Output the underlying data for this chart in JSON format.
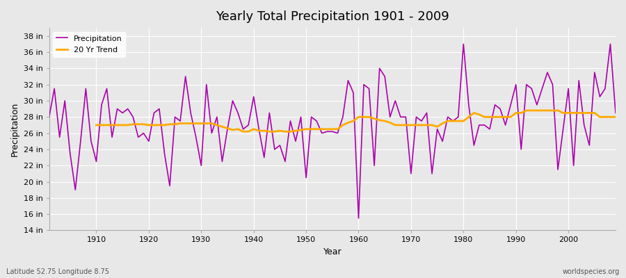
{
  "title": "Yearly Total Precipitation 1901 - 2009",
  "xlabel": "Year",
  "ylabel": "Precipitation",
  "subtitle_left": "Latitude 52.75 Longitude 8.75",
  "subtitle_right": "worldspecies.org",
  "legend_precip": "Precipitation",
  "legend_trend": "20 Yr Trend",
  "precip_color": "#aa00aa",
  "trend_color": "#ffaa00",
  "background_color": "#e8e8e8",
  "plot_bg_color": "#e8e8e8",
  "ylim": [
    14,
    39
  ],
  "yticks": [
    14,
    16,
    18,
    20,
    22,
    24,
    26,
    28,
    30,
    32,
    34,
    36,
    38
  ],
  "ytick_labels": [
    "14 in",
    "16 in",
    "18 in",
    "20 in",
    "22 in",
    "24 in",
    "26 in",
    "28 in",
    "30 in",
    "32 in",
    "34 in",
    "36 in",
    "38 in"
  ],
  "xticks": [
    1910,
    1920,
    1930,
    1940,
    1950,
    1960,
    1970,
    1980,
    1990,
    2000
  ],
  "years": [
    1901,
    1902,
    1903,
    1904,
    1905,
    1906,
    1907,
    1908,
    1909,
    1910,
    1911,
    1912,
    1913,
    1914,
    1915,
    1916,
    1917,
    1918,
    1919,
    1920,
    1921,
    1922,
    1923,
    1924,
    1925,
    1926,
    1927,
    1928,
    1929,
    1930,
    1931,
    1932,
    1933,
    1934,
    1935,
    1936,
    1937,
    1938,
    1939,
    1940,
    1941,
    1942,
    1943,
    1944,
    1945,
    1946,
    1947,
    1948,
    1949,
    1950,
    1951,
    1952,
    1953,
    1954,
    1955,
    1956,
    1957,
    1958,
    1959,
    1960,
    1961,
    1962,
    1963,
    1964,
    1965,
    1966,
    1967,
    1968,
    1969,
    1970,
    1971,
    1972,
    1973,
    1974,
    1975,
    1976,
    1977,
    1978,
    1979,
    1980,
    1981,
    1982,
    1983,
    1984,
    1985,
    1986,
    1987,
    1988,
    1989,
    1990,
    1991,
    1992,
    1993,
    1994,
    1995,
    1996,
    1997,
    1998,
    1999,
    2000,
    2001,
    2002,
    2003,
    2004,
    2005,
    2006,
    2007,
    2008,
    2009
  ],
  "precip": [
    28.0,
    31.5,
    25.5,
    30.0,
    23.5,
    19.0,
    25.0,
    31.5,
    25.0,
    22.5,
    29.5,
    31.5,
    25.5,
    29.0,
    28.5,
    29.0,
    28.0,
    25.5,
    26.0,
    25.0,
    28.5,
    29.0,
    23.5,
    19.5,
    28.0,
    27.5,
    33.0,
    28.5,
    25.5,
    22.0,
    32.0,
    26.0,
    28.0,
    22.5,
    26.5,
    30.0,
    28.5,
    26.5,
    27.0,
    30.5,
    26.5,
    23.0,
    28.5,
    24.0,
    24.5,
    22.5,
    27.5,
    25.0,
    28.0,
    20.5,
    28.0,
    27.5,
    26.0,
    26.2,
    26.2,
    26.0,
    28.0,
    32.5,
    31.0,
    15.5,
    32.0,
    31.5,
    22.0,
    34.0,
    33.0,
    28.0,
    30.0,
    28.0,
    28.0,
    21.0,
    28.0,
    27.5,
    28.5,
    21.0,
    26.5,
    25.0,
    28.0,
    27.5,
    28.0,
    37.0,
    29.5,
    24.5,
    27.0,
    27.0,
    26.5,
    29.5,
    29.0,
    27.0,
    29.5,
    32.0,
    24.0,
    32.0,
    31.5,
    29.5,
    31.5,
    33.5,
    32.0,
    21.5,
    26.5,
    31.5,
    22.0,
    32.5,
    27.0,
    24.5,
    33.5,
    30.5,
    31.5,
    37.0,
    28.5
  ],
  "trend_years": [
    1910,
    1911,
    1912,
    1913,
    1914,
    1915,
    1916,
    1917,
    1918,
    1919,
    1920,
    1921,
    1922,
    1923,
    1924,
    1925,
    1926,
    1927,
    1928,
    1929,
    1930,
    1931,
    1932,
    1933,
    1934,
    1935,
    1936,
    1937,
    1938,
    1939,
    1940,
    1941,
    1942,
    1943,
    1944,
    1945,
    1946,
    1947,
    1948,
    1949,
    1950,
    1951,
    1952,
    1953,
    1954,
    1955,
    1956,
    1957,
    1958,
    1959,
    1960,
    1961,
    1962,
    1963,
    1964,
    1965,
    1966,
    1967,
    1968,
    1969,
    1970,
    1971,
    1972,
    1973,
    1974,
    1975,
    1976,
    1977,
    1978,
    1979,
    1980,
    1981,
    1982,
    1983,
    1984,
    1985,
    1986,
    1987,
    1988,
    1989,
    1990,
    1991,
    1992,
    1993,
    1994,
    1995,
    1996,
    1997,
    1998,
    1999,
    2000,
    2001,
    2002,
    2003,
    2004,
    2005,
    2006,
    2007,
    2008,
    2009
  ],
  "trend": [
    27.0,
    27.0,
    27.0,
    27.0,
    27.0,
    27.0,
    27.0,
    27.1,
    27.1,
    27.1,
    27.0,
    27.0,
    27.0,
    27.0,
    27.1,
    27.1,
    27.2,
    27.2,
    27.2,
    27.2,
    27.2,
    27.2,
    27.2,
    27.0,
    26.8,
    26.6,
    26.4,
    26.5,
    26.2,
    26.2,
    26.5,
    26.3,
    26.3,
    26.2,
    26.2,
    26.3,
    26.2,
    26.2,
    26.3,
    26.4,
    26.5,
    26.5,
    26.5,
    26.5,
    26.5,
    26.5,
    26.5,
    27.0,
    27.3,
    27.5,
    28.0,
    28.0,
    28.0,
    27.8,
    27.6,
    27.5,
    27.3,
    27.0,
    27.0,
    27.0,
    27.0,
    27.0,
    27.0,
    27.0,
    27.0,
    26.8,
    27.2,
    27.5,
    27.5,
    27.5,
    27.5,
    28.0,
    28.5,
    28.3,
    28.0,
    28.0,
    28.0,
    28.0,
    28.0,
    28.0,
    28.5,
    28.5,
    28.8,
    28.8,
    28.8,
    28.8,
    28.8,
    28.8,
    28.8,
    28.5,
    28.5,
    28.5,
    28.5,
    28.5,
    28.5,
    28.5,
    28.0,
    28.0,
    28.0,
    28.0
  ]
}
